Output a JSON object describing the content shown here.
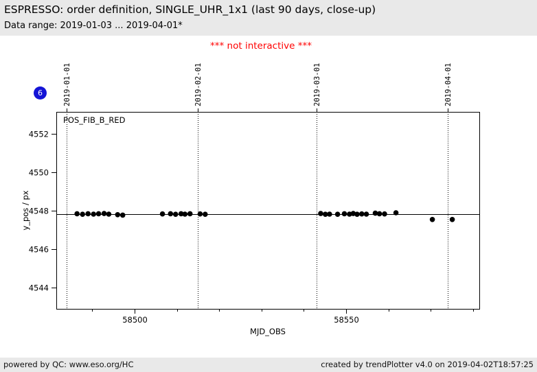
{
  "header": {
    "title": "ESPRESSO: order definition, SINGLE_UHR_1x1 (last 90 days, close-up)",
    "subtitle": "Data range: 2019-01-03 ... 2019-04-01*"
  },
  "warning": "*** not interactive ***",
  "badge": {
    "value": "6",
    "color": "#1414d6"
  },
  "chart_data": {
    "type": "scatter",
    "series_label": "POS_FIB_B_RED",
    "xlabel": "MJD_OBS",
    "ylabel": "y_pos / px",
    "xlim": [
      58481.5,
      58581.5
    ],
    "ylim": [
      4542.9,
      4553.15
    ],
    "x_major_ticks": [
      58500,
      58550
    ],
    "x_minor_tick_start": 58490,
    "x_minor_tick_step": 10,
    "y_ticks": [
      4544,
      4546,
      4548,
      4550,
      4552
    ],
    "reference_line_y": 4547.82,
    "grid": false,
    "legend_position": "none",
    "point_color": "#000000",
    "month_markers": [
      {
        "label": "2019-01-01",
        "mjd": 58484
      },
      {
        "label": "2019-02-01",
        "mjd": 58515
      },
      {
        "label": "2019-03-01",
        "mjd": 58543
      },
      {
        "label": "2019-04-01",
        "mjd": 58574
      }
    ],
    "points": [
      [
        58486.4,
        4547.85
      ],
      [
        58487.7,
        4547.82
      ],
      [
        58489.0,
        4547.85
      ],
      [
        58490.3,
        4547.83
      ],
      [
        58491.5,
        4547.85
      ],
      [
        58492.8,
        4547.86
      ],
      [
        58493.9,
        4547.83
      ],
      [
        58496.0,
        4547.8
      ],
      [
        58497.2,
        4547.78
      ],
      [
        58506.6,
        4547.84
      ],
      [
        58508.5,
        4547.85
      ],
      [
        58509.7,
        4547.82
      ],
      [
        58511.0,
        4547.85
      ],
      [
        58511.9,
        4547.83
      ],
      [
        58513.1,
        4547.85
      ],
      [
        58515.5,
        4547.84
      ],
      [
        58516.7,
        4547.82
      ],
      [
        58544.0,
        4547.86
      ],
      [
        58545.1,
        4547.82
      ],
      [
        58546.1,
        4547.83
      ],
      [
        58548.0,
        4547.82
      ],
      [
        58549.6,
        4547.85
      ],
      [
        58550.8,
        4547.83
      ],
      [
        58551.7,
        4547.86
      ],
      [
        58552.6,
        4547.82
      ],
      [
        58553.7,
        4547.84
      ],
      [
        58554.8,
        4547.83
      ],
      [
        58556.9,
        4547.88
      ],
      [
        58557.9,
        4547.85
      ],
      [
        58559.1,
        4547.84
      ],
      [
        58561.8,
        4547.9
      ],
      [
        58570.4,
        4547.55
      ],
      [
        58575.1,
        4547.55
      ]
    ]
  },
  "footer": {
    "left": "powered by QC: www.eso.org/HC",
    "right": "created by trendPlotter v4.0 on 2019-04-02T18:57:25"
  }
}
